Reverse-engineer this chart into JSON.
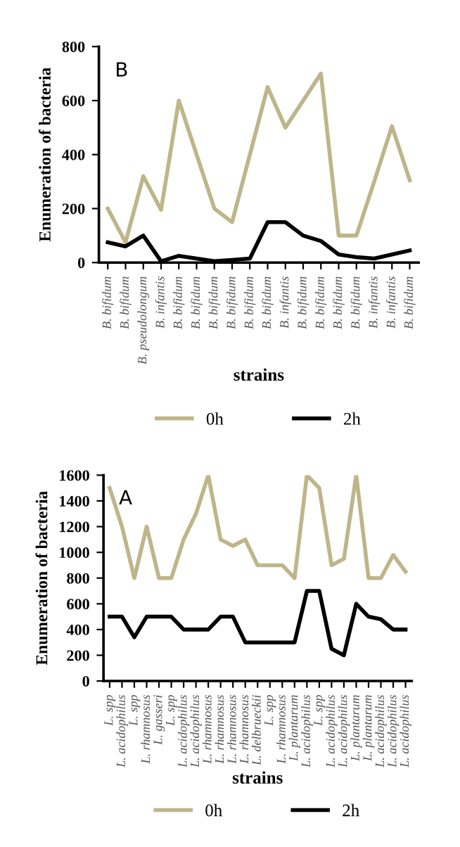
{
  "chart_data": [
    {
      "type": "line",
      "xlabel": "strains",
      "ylabel": "Enumeration of bacteria",
      "annotations": [
        "B"
      ],
      "categories": [
        "B. bifidum",
        "B. bifidum",
        "B. pseudolongum",
        "B. infantis",
        "B. bifidum",
        "B. bifidum",
        "B. bifidum",
        "B. bifidum",
        "B. bifidum",
        "B. bifidum",
        "B. infantis",
        "B. bifidum",
        "B. bifidum",
        "B. bifidum",
        "B. bifidum",
        "B. infantis",
        "B. infantis",
        "B. bifidum"
      ],
      "series": [
        {
          "name": "0h",
          "color": "#bfb58a",
          "values": [
            200,
            75,
            320,
            195,
            600,
            400,
            200,
            150,
            400,
            650,
            500,
            600,
            700,
            100,
            100,
            300,
            505,
            305
          ]
        },
        {
          "name": "2h",
          "color": "#000000",
          "values": [
            75,
            60,
            100,
            5,
            25,
            15,
            5,
            10,
            15,
            150,
            150,
            100,
            80,
            30,
            20,
            15,
            30,
            45
          ]
        }
      ],
      "ylim": [
        0,
        800
      ],
      "yticks": [
        0,
        200,
        400,
        600,
        800
      ],
      "grid": false,
      "legend": "bottom"
    },
    {
      "type": "line",
      "xlabel": "strains",
      "ylabel": "Enumeration of bacteria",
      "annotations": [
        "A"
      ],
      "categories": [
        "L. spp",
        "L. acidophilus",
        "L. spp",
        "L. rhamnosus",
        "L. gasseri",
        "L. spp",
        "L. acidophilus",
        "L. acidophilus",
        "L. rhamnosus",
        "L. rhamnosus",
        "L. rhamnosus",
        "L. rhamnosus",
        "L. delbrueckii",
        "L. spp",
        "L. rhamnosus",
        "L. plantarum",
        "L. acidophilus",
        "L. spp",
        "L. acidophilus",
        "L. acidophilus",
        "L. plantarum",
        "L. plantarum",
        "L. acidophilus",
        "L. acidophilus",
        "L. acidophilus"
      ],
      "series": [
        {
          "name": "0h",
          "color": "#bfb58a",
          "values": [
            1500,
            1200,
            800,
            1200,
            800,
            800,
            1100,
            1300,
            1600,
            1100,
            1050,
            1100,
            900,
            900,
            900,
            800,
            1600,
            1500,
            900,
            950,
            1600,
            800,
            800,
            980,
            850
          ]
        },
        {
          "name": "2h",
          "color": "#000000",
          "values": [
            500,
            500,
            340,
            500,
            500,
            500,
            400,
            400,
            400,
            500,
            500,
            300,
            300,
            300,
            300,
            300,
            700,
            700,
            250,
            200,
            600,
            500,
            480,
            400,
            400
          ]
        }
      ],
      "ylim": [
        0,
        1600
      ],
      "yticks": [
        0,
        200,
        400,
        600,
        800,
        1000,
        1200,
        1400,
        1600
      ],
      "grid": false,
      "legend": "bottom"
    }
  ]
}
